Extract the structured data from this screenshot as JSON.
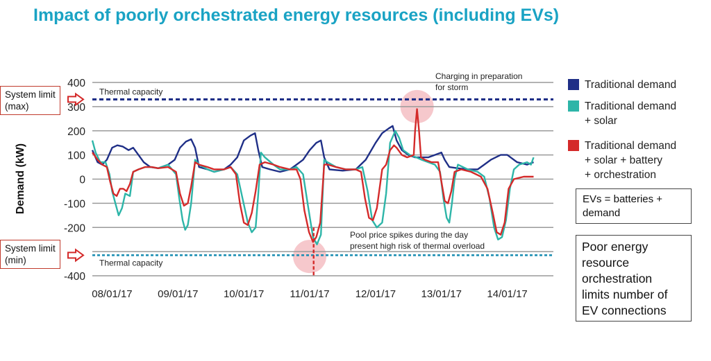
{
  "title": "Impact of poorly orchestrated energy resources (including EVs)",
  "limits": {
    "max": {
      "line1": "System limit",
      "line2": "(max)"
    },
    "min": {
      "line1": "System limit",
      "line2": "(min)"
    }
  },
  "notes": {
    "evs": [
      "EVs = batteries +",
      "demand"
    ],
    "poor": [
      "Poor energy",
      "resource",
      "orchestration",
      "limits number of",
      "EV connections"
    ]
  },
  "colors": {
    "traditional": "#1f2f87",
    "solar": "#2db5a8",
    "orchestration": "#d42a2a",
    "limit_arrow": "#d42a2a",
    "highlight": "#ef9aa2",
    "grid": "#9a9a9a",
    "title": "#1aa3c4"
  },
  "chart_data": {
    "type": "line",
    "title": "",
    "xlabel": "",
    "ylabel": "Demand (kW)",
    "ylim": [
      -400,
      400
    ],
    "yticks": [
      400,
      300,
      200,
      100,
      0,
      -100,
      -200,
      -300,
      -400
    ],
    "ytick_labels": [
      "400",
      "300",
      "200",
      "100",
      "0",
      "-100",
      "-200",
      "",
      "-400"
    ],
    "xlim": [
      0,
      7
    ],
    "x_ticks": [
      {
        "x": 0.3,
        "label": "08/01/17"
      },
      {
        "x": 1.3,
        "label": "09/01/17"
      },
      {
        "x": 2.3,
        "label": "10/01/17"
      },
      {
        "x": 3.3,
        "label": "11/01/17"
      },
      {
        "x": 4.3,
        "label": "12/01/17"
      },
      {
        "x": 5.3,
        "label": "13/01/17"
      },
      {
        "x": 6.3,
        "label": "14/01/17"
      }
    ],
    "grid": true,
    "legend_position": "right",
    "thermal_max": {
      "value": 330,
      "label": "Thermal capacity"
    },
    "thermal_min": {
      "value": -315,
      "label": "Thermal capacity"
    },
    "annotations": [
      {
        "lines": [
          "Charging in preparation",
          "for storm"
        ],
        "x": 4.93,
        "y": 300
      },
      {
        "lines": [
          "Pool price spikes during the day",
          "present high risk of thermal overload"
        ],
        "x": 3.3,
        "y": -320
      }
    ],
    "series": [
      {
        "name": "Traditional demand",
        "points": [
          [
            0.0,
            120
          ],
          [
            0.08,
            70
          ],
          [
            0.15,
            60
          ],
          [
            0.22,
            80
          ],
          [
            0.3,
            130
          ],
          [
            0.38,
            140
          ],
          [
            0.46,
            135
          ],
          [
            0.55,
            120
          ],
          [
            0.62,
            130
          ],
          [
            0.7,
            100
          ],
          [
            0.78,
            70
          ],
          [
            0.88,
            50
          ],
          [
            1.0,
            45
          ],
          [
            1.15,
            60
          ],
          [
            1.25,
            80
          ],
          [
            1.33,
            130
          ],
          [
            1.42,
            155
          ],
          [
            1.5,
            165
          ],
          [
            1.56,
            130
          ],
          [
            1.62,
            50
          ],
          [
            1.75,
            40
          ],
          [
            1.85,
            30
          ],
          [
            2.0,
            40
          ],
          [
            2.1,
            60
          ],
          [
            2.2,
            90
          ],
          [
            2.3,
            160
          ],
          [
            2.4,
            180
          ],
          [
            2.47,
            190
          ],
          [
            2.52,
            120
          ],
          [
            2.58,
            50
          ],
          [
            2.7,
            40
          ],
          [
            2.85,
            30
          ],
          [
            3.0,
            40
          ],
          [
            3.1,
            60
          ],
          [
            3.2,
            80
          ],
          [
            3.3,
            120
          ],
          [
            3.4,
            150
          ],
          [
            3.47,
            160
          ],
          [
            3.52,
            90
          ],
          [
            3.6,
            40
          ],
          [
            3.8,
            35
          ],
          [
            4.0,
            40
          ],
          [
            4.15,
            80
          ],
          [
            4.3,
            150
          ],
          [
            4.4,
            190
          ],
          [
            4.5,
            210
          ],
          [
            4.56,
            220
          ],
          [
            4.62,
            160
          ],
          [
            4.7,
            120
          ],
          [
            4.8,
            100
          ],
          [
            4.9,
            90
          ],
          [
            5.0,
            90
          ],
          [
            5.1,
            90
          ],
          [
            5.2,
            100
          ],
          [
            5.3,
            110
          ],
          [
            5.35,
            80
          ],
          [
            5.42,
            50
          ],
          [
            5.55,
            45
          ],
          [
            5.7,
            40
          ],
          [
            5.85,
            40
          ],
          [
            5.95,
            60
          ],
          [
            6.05,
            80
          ],
          [
            6.2,
            100
          ],
          [
            6.3,
            100
          ],
          [
            6.35,
            90
          ],
          [
            6.45,
            70
          ],
          [
            6.6,
            60
          ],
          [
            6.7,
            70
          ]
        ]
      },
      {
        "name": "Traditional demand + solar",
        "points": [
          [
            0.0,
            160
          ],
          [
            0.05,
            110
          ],
          [
            0.12,
            70
          ],
          [
            0.2,
            70
          ],
          [
            0.26,
            20
          ],
          [
            0.3,
            -50
          ],
          [
            0.35,
            -100
          ],
          [
            0.4,
            -150
          ],
          [
            0.45,
            -120
          ],
          [
            0.5,
            -60
          ],
          [
            0.57,
            -70
          ],
          [
            0.62,
            30
          ],
          [
            0.7,
            40
          ],
          [
            0.8,
            50
          ],
          [
            0.9,
            50
          ],
          [
            1.0,
            45
          ],
          [
            1.15,
            60
          ],
          [
            1.27,
            20
          ],
          [
            1.32,
            -80
          ],
          [
            1.37,
            -170
          ],
          [
            1.41,
            -210
          ],
          [
            1.45,
            -190
          ],
          [
            1.5,
            -100
          ],
          [
            1.56,
            80
          ],
          [
            1.62,
            60
          ],
          [
            1.75,
            40
          ],
          [
            1.85,
            30
          ],
          [
            2.0,
            40
          ],
          [
            2.1,
            50
          ],
          [
            2.2,
            20
          ],
          [
            2.28,
            -80
          ],
          [
            2.36,
            -180
          ],
          [
            2.42,
            -220
          ],
          [
            2.48,
            -200
          ],
          [
            2.52,
            -60
          ],
          [
            2.56,
            110
          ],
          [
            2.62,
            90
          ],
          [
            2.75,
            60
          ],
          [
            2.85,
            40
          ],
          [
            3.0,
            40
          ],
          [
            3.1,
            50
          ],
          [
            3.2,
            20
          ],
          [
            3.28,
            -120
          ],
          [
            3.35,
            -240
          ],
          [
            3.41,
            -270
          ],
          [
            3.47,
            -230
          ],
          [
            3.52,
            80
          ],
          [
            3.57,
            70
          ],
          [
            3.7,
            50
          ],
          [
            3.85,
            40
          ],
          [
            4.0,
            40
          ],
          [
            4.1,
            50
          ],
          [
            4.18,
            -50
          ],
          [
            4.25,
            -170
          ],
          [
            4.32,
            -200
          ],
          [
            4.4,
            -180
          ],
          [
            4.46,
            -60
          ],
          [
            4.52,
            150
          ],
          [
            4.6,
            200
          ],
          [
            4.66,
            170
          ],
          [
            4.72,
            120
          ],
          [
            4.82,
            100
          ],
          [
            4.92,
            90
          ],
          [
            5.0,
            80
          ],
          [
            5.1,
            70
          ],
          [
            5.2,
            60
          ],
          [
            5.28,
            30
          ],
          [
            5.33,
            -80
          ],
          [
            5.38,
            -160
          ],
          [
            5.42,
            -180
          ],
          [
            5.46,
            -100
          ],
          [
            5.5,
            0
          ],
          [
            5.55,
            60
          ],
          [
            5.7,
            40
          ],
          [
            5.85,
            30
          ],
          [
            5.95,
            10
          ],
          [
            6.03,
            -80
          ],
          [
            6.1,
            -200
          ],
          [
            6.16,
            -250
          ],
          [
            6.22,
            -240
          ],
          [
            6.28,
            -170
          ],
          [
            6.34,
            -40
          ],
          [
            6.4,
            40
          ],
          [
            6.48,
            60
          ],
          [
            6.6,
            70
          ],
          [
            6.66,
            60
          ],
          [
            6.7,
            90
          ]
        ]
      },
      {
        "name": "Traditional demand + solar + battery + orchestration",
        "points": [
          [
            0.0,
            110
          ],
          [
            0.08,
            80
          ],
          [
            0.15,
            60
          ],
          [
            0.22,
            50
          ],
          [
            0.27,
            -10
          ],
          [
            0.32,
            -60
          ],
          [
            0.37,
            -70
          ],
          [
            0.42,
            -40
          ],
          [
            0.47,
            -40
          ],
          [
            0.52,
            -50
          ],
          [
            0.57,
            -20
          ],
          [
            0.62,
            30
          ],
          [
            0.7,
            40
          ],
          [
            0.8,
            50
          ],
          [
            0.9,
            50
          ],
          [
            1.0,
            45
          ],
          [
            1.15,
            50
          ],
          [
            1.27,
            30
          ],
          [
            1.33,
            -60
          ],
          [
            1.39,
            -110
          ],
          [
            1.45,
            -100
          ],
          [
            1.5,
            -30
          ],
          [
            1.56,
            70
          ],
          [
            1.62,
            60
          ],
          [
            1.75,
            50
          ],
          [
            1.85,
            40
          ],
          [
            2.0,
            40
          ],
          [
            2.1,
            50
          ],
          [
            2.18,
            20
          ],
          [
            2.24,
            -100
          ],
          [
            2.3,
            -180
          ],
          [
            2.36,
            -190
          ],
          [
            2.42,
            -140
          ],
          [
            2.48,
            -50
          ],
          [
            2.54,
            60
          ],
          [
            2.62,
            70
          ],
          [
            2.75,
            60
          ],
          [
            2.85,
            50
          ],
          [
            3.0,
            40
          ],
          [
            3.1,
            40
          ],
          [
            3.16,
            0
          ],
          [
            3.22,
            -130
          ],
          [
            3.29,
            -220
          ],
          [
            3.35,
            -260
          ],
          [
            3.4,
            -240
          ],
          [
            3.46,
            -180
          ],
          [
            3.52,
            60
          ],
          [
            3.58,
            60
          ],
          [
            3.7,
            50
          ],
          [
            3.85,
            40
          ],
          [
            4.0,
            40
          ],
          [
            4.08,
            30
          ],
          [
            4.14,
            -80
          ],
          [
            4.2,
            -160
          ],
          [
            4.26,
            -170
          ],
          [
            4.32,
            -120
          ],
          [
            4.4,
            40
          ],
          [
            4.46,
            60
          ],
          [
            4.52,
            120
          ],
          [
            4.58,
            140
          ],
          [
            4.62,
            130
          ],
          [
            4.7,
            100
          ],
          [
            4.78,
            90
          ],
          [
            4.88,
            100
          ],
          [
            4.9,
            200
          ],
          [
            4.93,
            290
          ],
          [
            4.96,
            200
          ],
          [
            4.99,
            90
          ],
          [
            5.05,
            80
          ],
          [
            5.15,
            70
          ],
          [
            5.25,
            70
          ],
          [
            5.3,
            -10
          ],
          [
            5.35,
            -90
          ],
          [
            5.4,
            -100
          ],
          [
            5.45,
            -50
          ],
          [
            5.5,
            30
          ],
          [
            5.6,
            40
          ],
          [
            5.75,
            30
          ],
          [
            5.9,
            10
          ],
          [
            6.0,
            -40
          ],
          [
            6.08,
            -140
          ],
          [
            6.14,
            -220
          ],
          [
            6.2,
            -230
          ],
          [
            6.26,
            -180
          ],
          [
            6.32,
            -40
          ],
          [
            6.4,
            0
          ],
          [
            6.55,
            10
          ],
          [
            6.7,
            10
          ]
        ]
      }
    ],
    "spike": {
      "x": 3.36,
      "y1": -200,
      "y2": -400
    }
  },
  "legend": [
    {
      "lines": [
        "Traditional demand"
      ]
    },
    {
      "lines": [
        "Traditional demand",
        "+ solar"
      ]
    },
    {
      "lines": [
        "Traditional demand",
        "+ solar + battery",
        "+ orchestration"
      ]
    }
  ]
}
